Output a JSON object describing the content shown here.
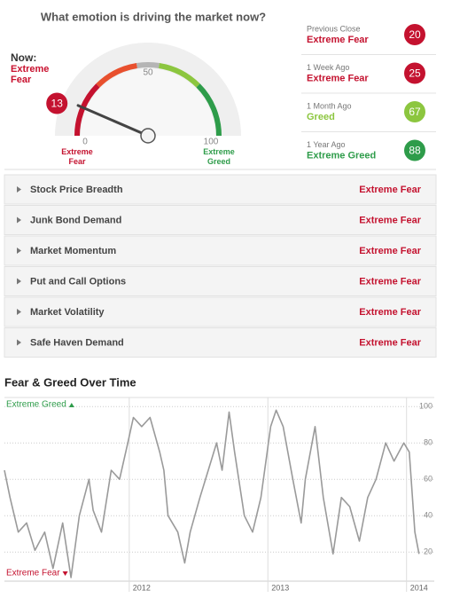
{
  "gauge": {
    "title": "What emotion is driving the market now?",
    "now_label": "Now:",
    "rating": "Extreme Fear",
    "value": 13,
    "ticks": [
      0,
      50,
      100
    ],
    "min_label": "Extreme Fear",
    "max_label": "Extreme Greed"
  },
  "history": [
    {
      "label": "Previous Close",
      "rating": "Extreme Fear",
      "value": 20,
      "color": "#c4122f"
    },
    {
      "label": "1 Week Ago",
      "rating": "Extreme Fear",
      "value": 25,
      "color": "#c4122f"
    },
    {
      "label": "1 Month Ago",
      "rating": "Greed",
      "value": 67,
      "color": "#8cc63f"
    },
    {
      "label": "1 Year Ago",
      "rating": "Extreme Greed",
      "value": 88,
      "color": "#2e9c4a"
    }
  ],
  "indicators": [
    {
      "name": "Stock Price Breadth",
      "rating": "Extreme Fear"
    },
    {
      "name": "Junk Bond Demand",
      "rating": "Extreme Fear"
    },
    {
      "name": "Market Momentum",
      "rating": "Extreme Fear"
    },
    {
      "name": "Put and Call Options",
      "rating": "Extreme Fear"
    },
    {
      "name": "Market Volatility",
      "rating": "Extreme Fear"
    },
    {
      "name": "Safe Haven Demand",
      "rating": "Extreme Fear"
    }
  ],
  "chart_data": {
    "type": "line",
    "title": "Fear & Greed Over Time",
    "x": [
      2011.1,
      2011.14,
      2011.2,
      2011.26,
      2011.32,
      2011.39,
      2011.45,
      2011.52,
      2011.58,
      2011.64,
      2011.71,
      2011.74,
      2011.8,
      2011.87,
      2011.93,
      2011.99,
      2012.03,
      2012.09,
      2012.15,
      2012.22,
      2012.25,
      2012.28,
      2012.35,
      2012.4,
      2012.44,
      2012.51,
      2012.57,
      2012.63,
      2012.67,
      2012.72,
      2012.76,
      2012.83,
      2012.89,
      2012.95,
      2013.02,
      2013.06,
      2013.11,
      2013.18,
      2013.24,
      2013.27,
      2013.34,
      2013.4,
      2013.47,
      2013.53,
      2013.59,
      2013.66,
      2013.72,
      2013.78,
      2013.85,
      2013.91,
      2013.98,
      2014.02,
      2014.06,
      2014.09
    ],
    "series": [
      {
        "color": "#9a9a9a",
        "values": [
          65,
          50,
          31,
          36,
          21,
          31,
          11,
          36,
          6,
          40,
          60,
          43,
          31,
          65,
          60,
          80,
          94,
          89,
          94,
          75,
          65,
          40,
          31,
          14,
          31,
          50,
          65,
          80,
          65,
          97,
          75,
          40,
          31,
          50,
          89,
          98,
          89,
          60,
          36,
          60,
          89,
          50,
          19,
          50,
          45,
          26,
          50,
          60,
          80,
          70,
          80,
          75,
          31,
          19
        ]
      }
    ],
    "xlim": [
      2011.1,
      2014.2
    ],
    "xticks": [
      2012,
      2013,
      2014
    ],
    "ylim": [
      4,
      105
    ],
    "yticks": [
      20,
      40,
      60,
      80,
      100
    ],
    "grid": true,
    "annotations": [
      {
        "text": "Extreme Greed",
        "color": "#2e9c4a"
      },
      {
        "text": "Extreme Fear",
        "color": "#c4122f"
      }
    ]
  }
}
